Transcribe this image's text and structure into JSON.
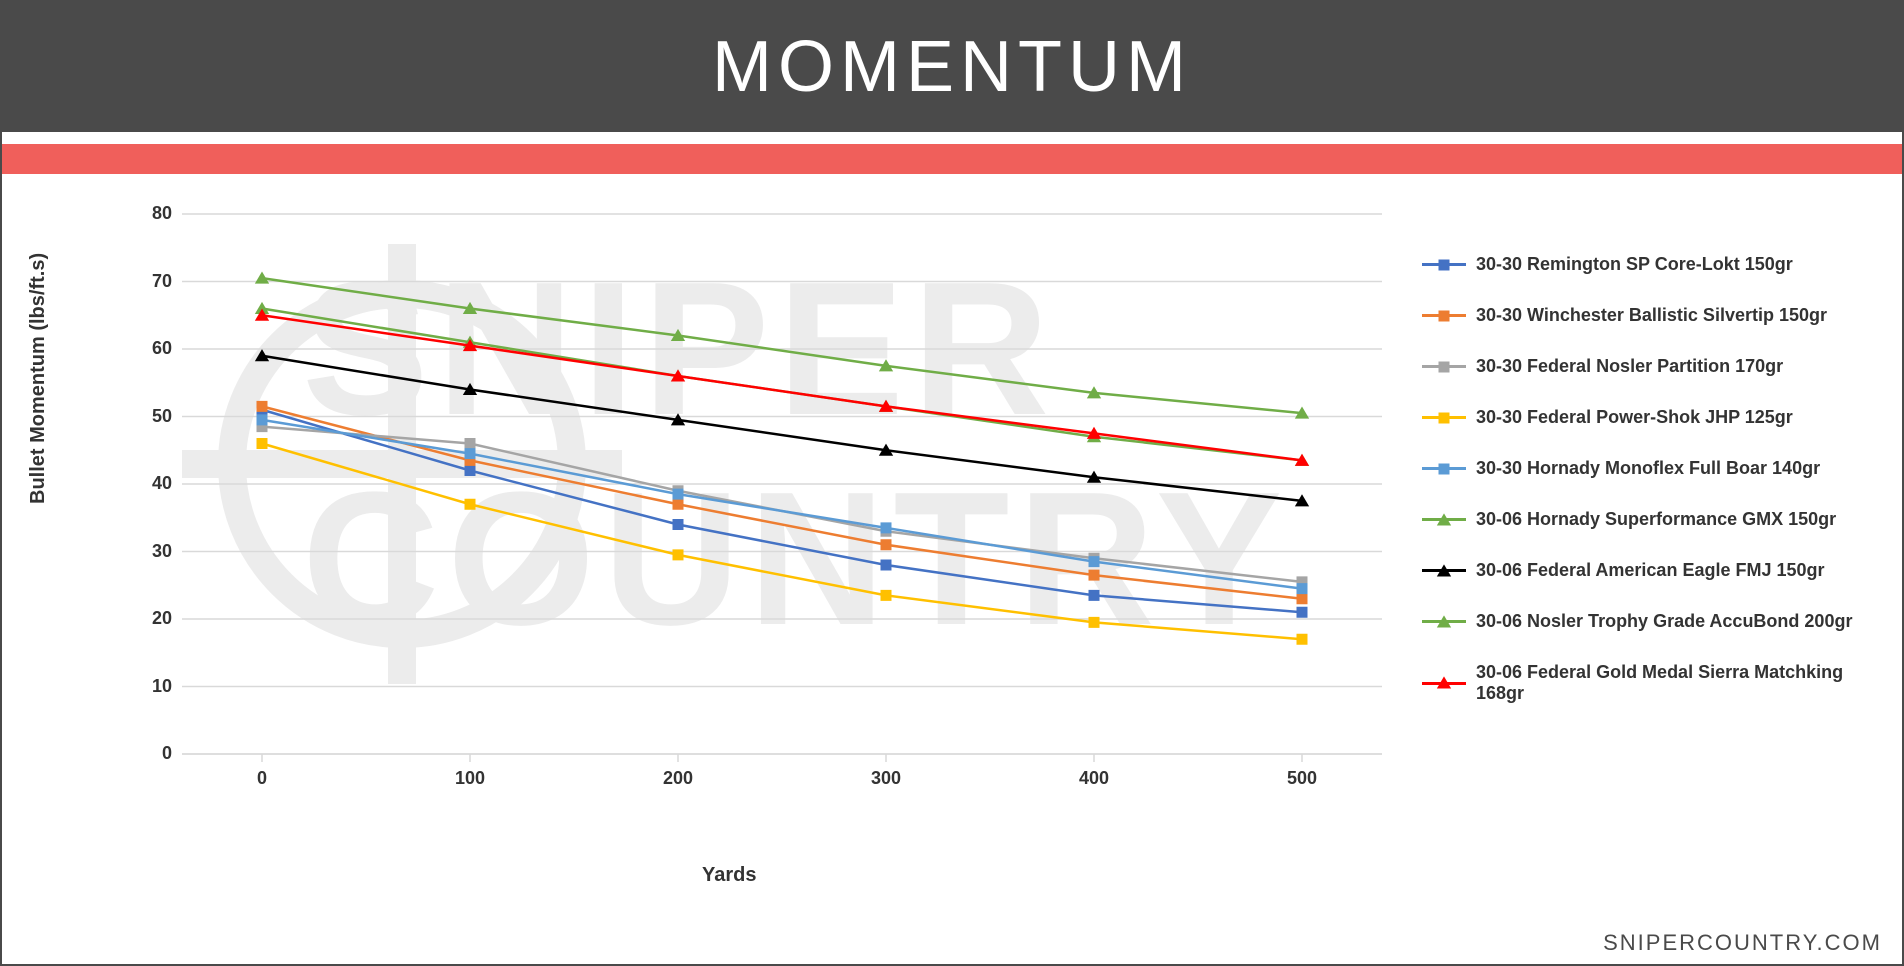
{
  "header": {
    "title": "MOMENTUM",
    "bg_color": "#4a4a4a",
    "title_color": "#ffffff",
    "accent_color": "#f05f5b"
  },
  "watermark_text": "SNIPER\nCOUNTRY",
  "footer_brand": "SNIPERCOUNTRY.COM",
  "chart": {
    "type": "line",
    "x_label": "Yards",
    "y_label": "Bullet Momentum (lbs/ft.s)",
    "x_categories": [
      "0",
      "100",
      "200",
      "300",
      "400",
      "500"
    ],
    "y_ticks": [
      0,
      10,
      20,
      30,
      40,
      50,
      60,
      70,
      80
    ],
    "ylim": [
      0,
      80
    ],
    "grid_color": "#d9d9d9",
    "background_color": "#ffffff",
    "label_fontsize": 20,
    "tick_fontsize": 18,
    "line_width": 2.5,
    "marker_size": 11,
    "series": [
      {
        "name": "30-30 Remington SP Core-Lokt 150gr",
        "color": "#4472c4",
        "marker": "square",
        "values": [
          51,
          42,
          34,
          28,
          23.5,
          21
        ]
      },
      {
        "name": "30-30 Winchester Ballistic Silvertip 150gr",
        "color": "#ed7d31",
        "marker": "square",
        "values": [
          51.5,
          43.5,
          37,
          31,
          26.5,
          23
        ]
      },
      {
        "name": "30-30 Federal Nosler Partition 170gr",
        "color": "#a5a5a5",
        "marker": "square",
        "values": [
          48.5,
          46,
          39,
          33,
          29,
          25.5
        ]
      },
      {
        "name": "30-30 Federal Power-Shok JHP 125gr",
        "color": "#ffc000",
        "marker": "square",
        "values": [
          46,
          37,
          29.5,
          23.5,
          19.5,
          17
        ]
      },
      {
        "name": "30-30 Hornady Monoflex Full Boar 140gr",
        "color": "#5b9bd5",
        "marker": "square",
        "values": [
          49.5,
          44.5,
          38.5,
          33.5,
          28.5,
          24.5
        ]
      },
      {
        "name": "30-06 Hornady Superformance GMX 150gr",
        "color": "#70ad47",
        "marker": "triangle",
        "values": [
          66,
          61,
          56,
          51.5,
          47,
          43.5
        ]
      },
      {
        "name": "30-06 Federal American Eagle FMJ 150gr",
        "color": "#000000",
        "marker": "triangle",
        "values": [
          59,
          54,
          49.5,
          45,
          41,
          37.5
        ]
      },
      {
        "name": "30-06 Nosler Trophy Grade AccuBond 200gr",
        "color": "#70ad47",
        "marker": "triangle",
        "values": [
          70.5,
          66,
          62,
          57.5,
          53.5,
          50.5
        ]
      },
      {
        "name": "30-06 Federal Gold Medal Sierra Matchking 168gr",
        "color": "#ff0000",
        "marker": "triangle",
        "values": [
          65,
          60.5,
          56,
          51.5,
          47.5,
          43.5
        ]
      }
    ]
  }
}
